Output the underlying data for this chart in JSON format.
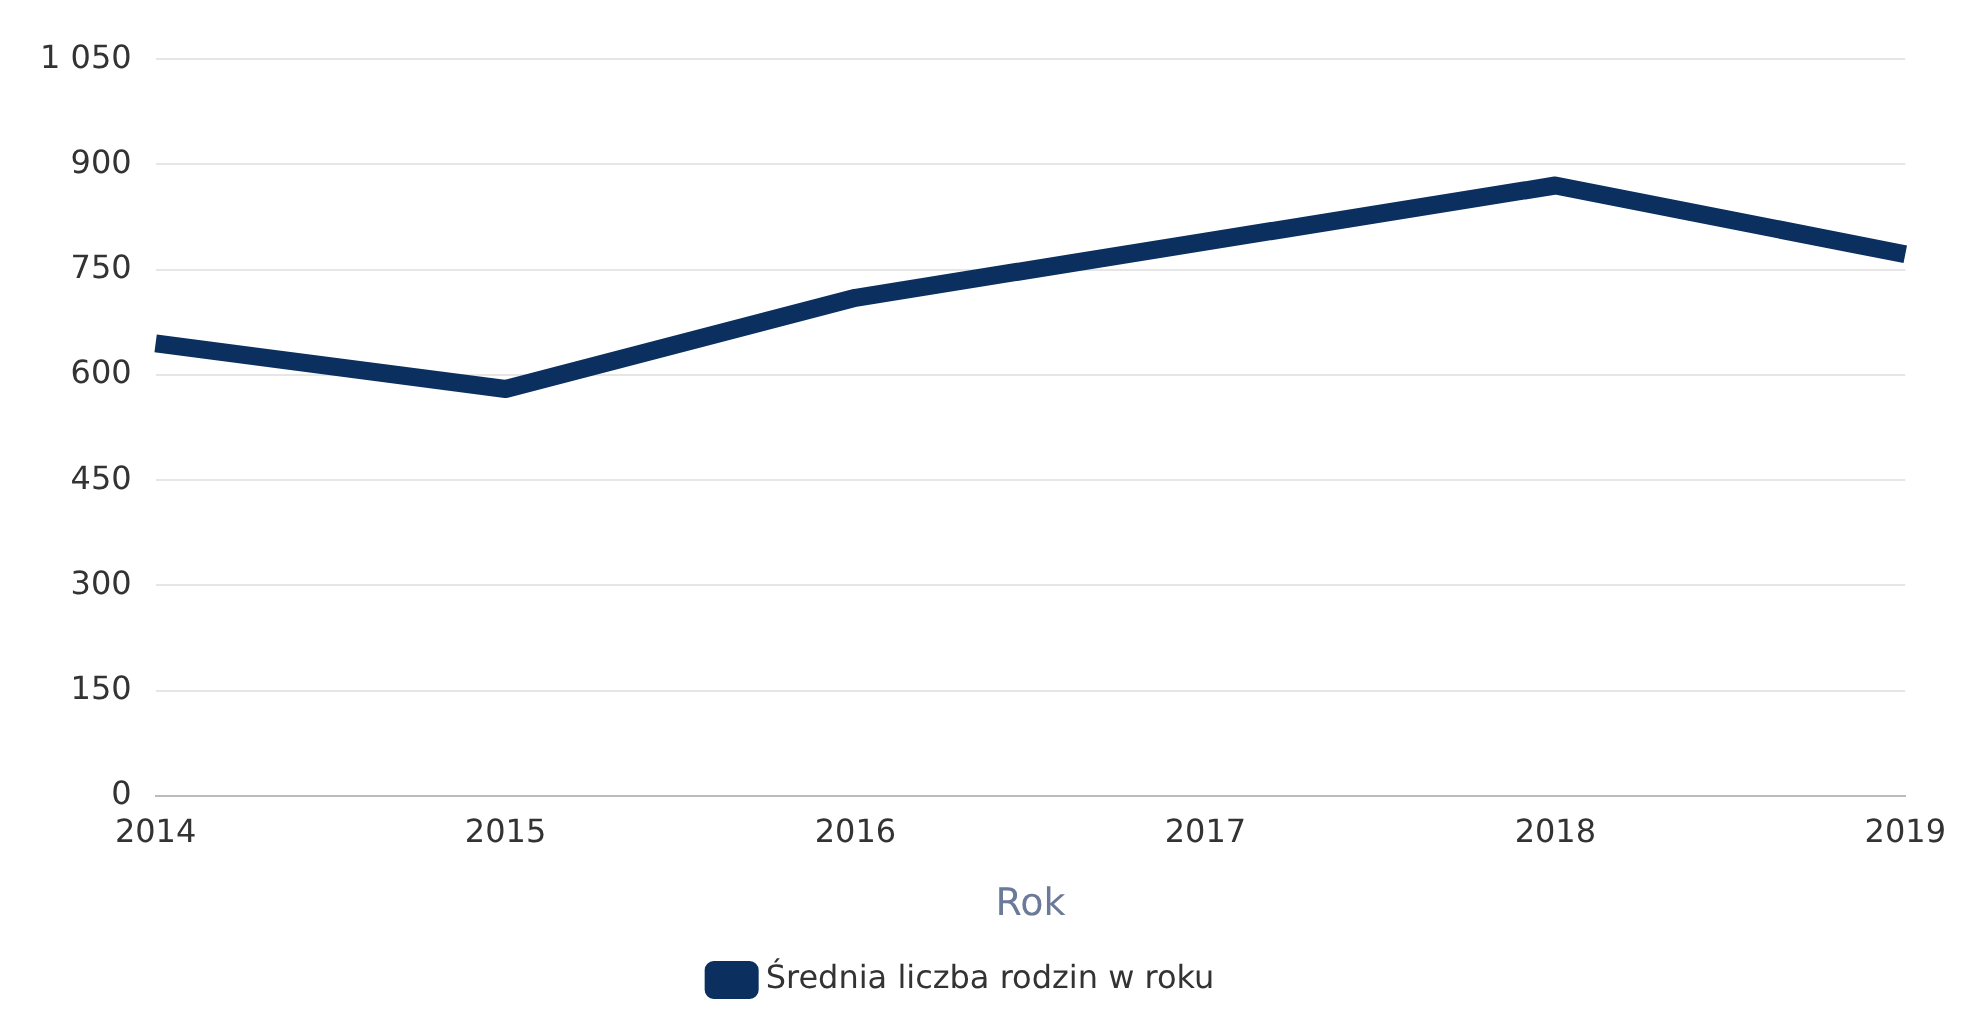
{
  "chart_data": {
    "type": "line",
    "xlabel": "Rok",
    "categories": [
      "2014",
      "2015",
      "2016",
      "2017",
      "2018",
      "2019"
    ],
    "series": [
      {
        "name": "Średnia liczba rodzin w roku",
        "color": "#0b3060",
        "values": [
          645,
          580,
          710,
          790,
          870,
          772
        ]
      }
    ],
    "ylim": [
      0,
      1050
    ],
    "yticks": [
      0,
      150,
      300,
      450,
      600,
      750,
      900,
      {
        "value": 1050,
        "label": "1 050"
      }
    ],
    "grid": "y",
    "legend": "bottom",
    "marker": "none",
    "line_style": "solid"
  }
}
